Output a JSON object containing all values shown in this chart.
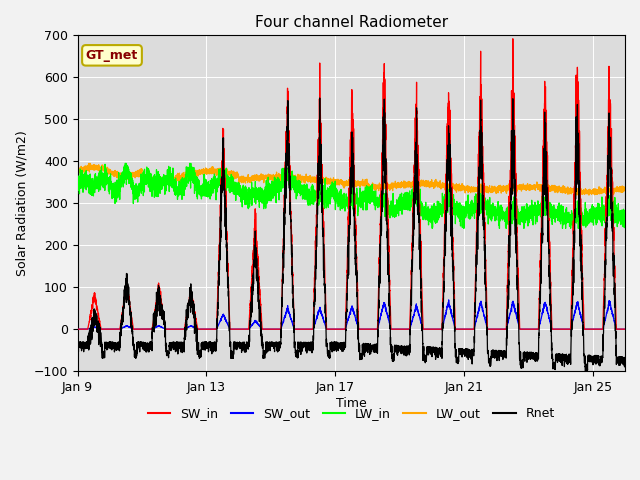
{
  "title": "Four channel Radiometer",
  "xlabel": "Time",
  "ylabel": "Solar Radiation (W/m2)",
  "ylim": [
    -100,
    700
  ],
  "xlim": [
    0,
    17
  ],
  "annotation_text": "GT_met",
  "annotation_bg": "#ffffcc",
  "annotation_edge": "#bbaa00",
  "annotation_text_color": "#880000",
  "xtick_labels": [
    "Jan 9",
    "Jan 13",
    "Jan 17",
    "Jan 21",
    "Jan 25"
  ],
  "xtick_positions": [
    0,
    4,
    8,
    12,
    16
  ],
  "colors": {
    "SW_in": "red",
    "SW_out": "blue",
    "LW_in": "lime",
    "LW_out": "orange",
    "Rnet": "black"
  },
  "legend_labels": [
    "SW_in",
    "SW_out",
    "LW_in",
    "LW_out",
    "Rnet"
  ],
  "yticks": [
    -100,
    0,
    100,
    200,
    300,
    400,
    500,
    600,
    700
  ],
  "figsize": [
    6.4,
    4.8
  ],
  "dpi": 100
}
